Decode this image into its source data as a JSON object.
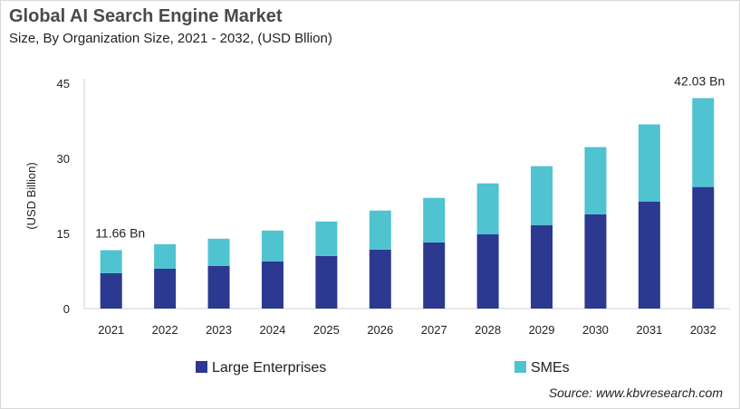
{
  "title": "Global AI Search Engine Market",
  "subtitle": "Size, By Organization Size, 2021 - 2032, (USD Bllion)",
  "source": "Source: www.kbvresearch.com",
  "chart_data": {
    "type": "bar",
    "stacked": true,
    "ylabel": "(USD Billion)",
    "ylim": [
      0,
      45
    ],
    "yticks": [
      0,
      15,
      30,
      45
    ],
    "grid": false,
    "legend_placement": "bottom",
    "categories": [
      "2021",
      "2022",
      "2023",
      "2024",
      "2025",
      "2026",
      "2027",
      "2028",
      "2029",
      "2030",
      "2031",
      "2032"
    ],
    "series": [
      {
        "name": "Large Enterprises",
        "color": "#2b3990",
        "values": [
          7.07,
          7.97,
          8.51,
          9.42,
          10.51,
          11.78,
          13.22,
          14.86,
          16.67,
          18.84,
          21.38,
          24.28
        ]
      },
      {
        "name": "SMEs",
        "color": "#4fc3cf",
        "values": [
          4.59,
          4.89,
          5.44,
          6.16,
          6.88,
          7.79,
          8.88,
          10.14,
          11.77,
          13.41,
          15.4,
          17.75
        ]
      }
    ],
    "annotations": [
      {
        "category": "2021",
        "text": "11.66 Bn"
      },
      {
        "category": "2032",
        "text": "42.03 Bn"
      }
    ]
  }
}
